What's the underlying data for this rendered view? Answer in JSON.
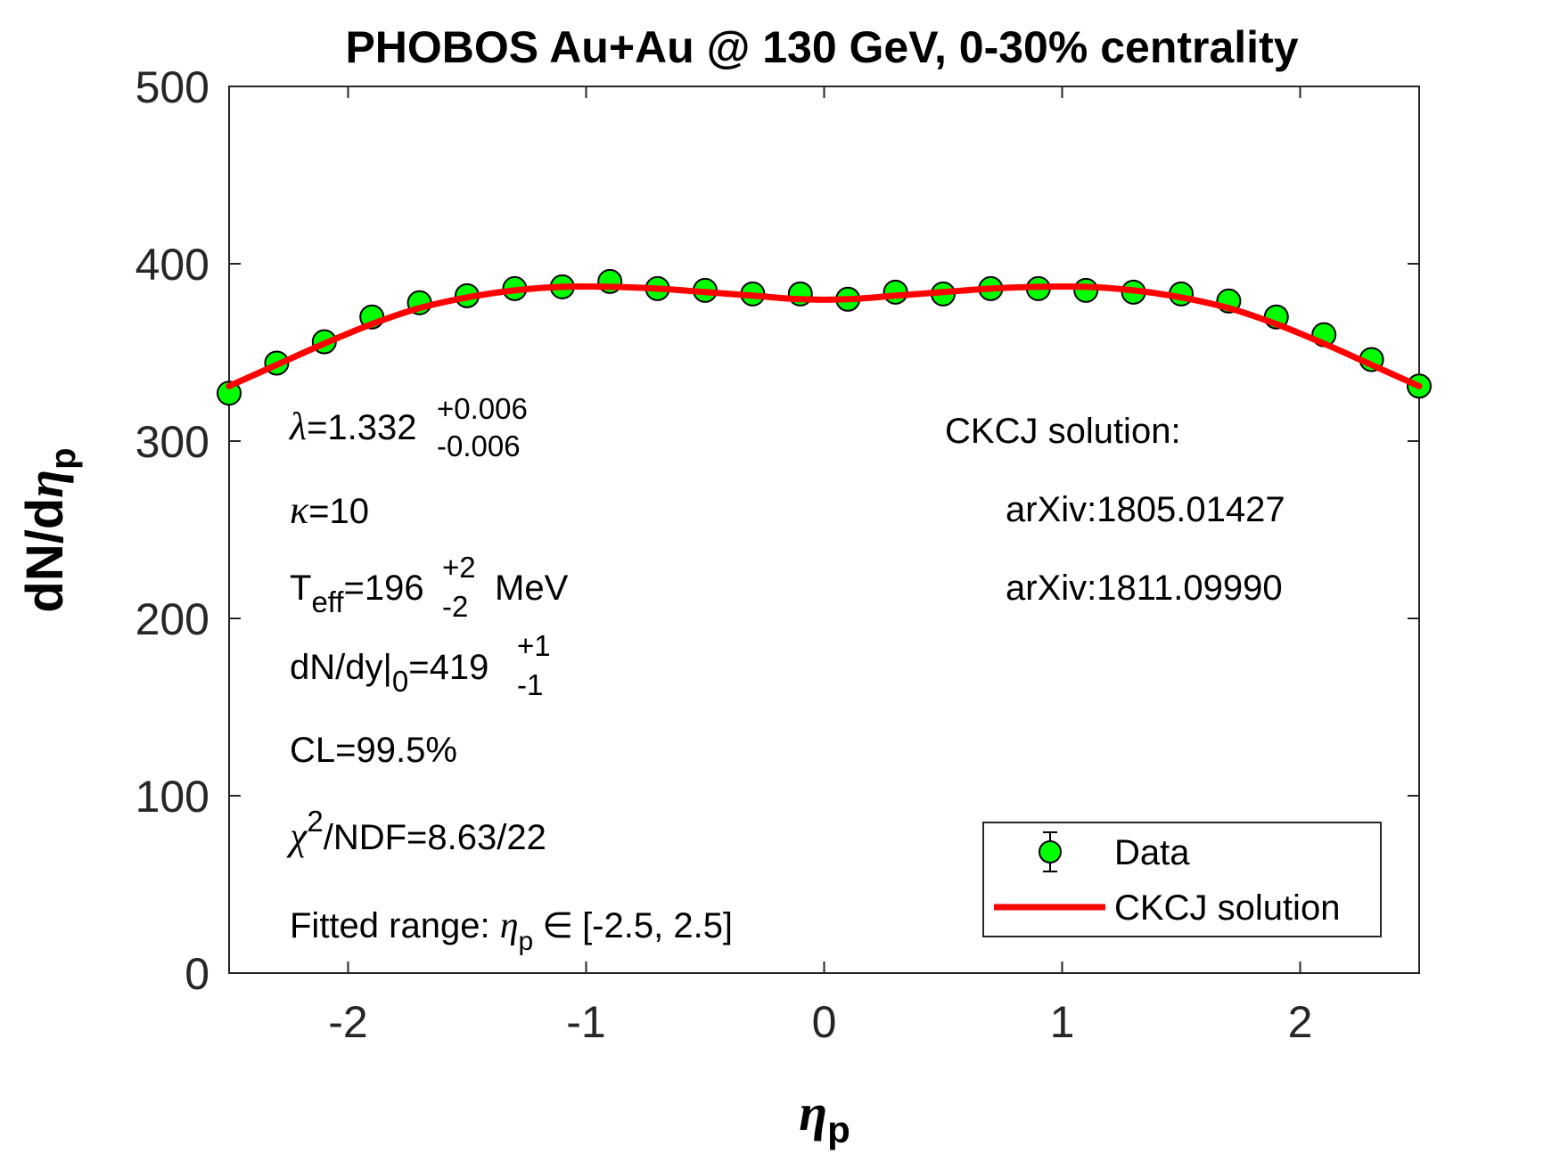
{
  "chart_data": {
    "type": "scatter",
    "title": "PHOBOS Au+Au @ 130 GeV, 0-30% centrality",
    "xlabel": {
      "symbol": "η",
      "subscript": "p"
    },
    "ylabel": {
      "text": "dN/d",
      "symbol": "η",
      "subscript": "p"
    },
    "xlim": [
      -2.5,
      2.5
    ],
    "ylim": [
      0,
      500
    ],
    "xticks": [
      -2,
      -1,
      0,
      1,
      2
    ],
    "xtick_labels": [
      "-2",
      "-1",
      "0",
      "1",
      "2"
    ],
    "yticks": [
      0,
      100,
      200,
      300,
      400,
      500
    ],
    "ytick_labels": [
      "0",
      "100",
      "200",
      "300",
      "400",
      "500"
    ],
    "series": [
      {
        "name": "Data",
        "kind": "errorbar-markers",
        "color": "#00ff00",
        "x": [
          -2.5,
          -2.3,
          -2.1,
          -1.9,
          -1.7,
          -1.5,
          -1.3,
          -1.1,
          -0.9,
          -0.7,
          -0.5,
          -0.3,
          -0.1,
          0.1,
          0.3,
          0.5,
          0.7,
          0.9,
          1.1,
          1.3,
          1.5,
          1.7,
          1.9,
          2.1,
          2.3,
          2.5
        ],
        "y": [
          327,
          344,
          356,
          370,
          378,
          382,
          386,
          387,
          390,
          386,
          385,
          383,
          383,
          380,
          384,
          383,
          386,
          386,
          385,
          384,
          383,
          379,
          370,
          360,
          346,
          331
        ],
        "err": [
          4,
          4,
          4,
          4,
          4,
          4,
          4,
          4,
          4,
          4,
          4,
          4,
          4,
          4,
          4,
          4,
          4,
          4,
          4,
          4,
          4,
          4,
          4,
          4,
          4,
          4
        ]
      },
      {
        "name": "CKCJ solution",
        "kind": "line",
        "color": "#ff0000",
        "x": [
          -2.5,
          -2.3,
          -2.1,
          -1.9,
          -1.7,
          -1.5,
          -1.3,
          -1.1,
          -0.9,
          -0.7,
          -0.5,
          -0.3,
          -0.1,
          0.1,
          0.3,
          0.5,
          0.7,
          0.9,
          1.1,
          1.3,
          1.5,
          1.7,
          1.9,
          2.1,
          2.3,
          2.5
        ],
        "y": [
          331,
          343,
          355,
          366,
          375,
          381,
          385,
          387,
          387,
          386,
          384,
          382,
          380,
          380,
          382,
          384,
          386,
          387,
          387,
          385,
          381,
          375,
          366,
          355,
          343,
          331
        ]
      }
    ],
    "legend": {
      "position": "bottom-right",
      "entries": [
        "Data",
        "CKCJ solution"
      ]
    },
    "annotations_left": {
      "lambda": {
        "symbol": "λ",
        "text": "=1.332",
        "sup": "+0.006",
        "sub": "-0.006"
      },
      "kappa": {
        "symbol": "κ",
        "text": "=10"
      },
      "teff": {
        "pre": "T",
        "presub": "eff",
        "text": "=196",
        "sup": "+2",
        "sub": "-2",
        "post": "MeV"
      },
      "dndy": {
        "pre": "dN/dy|",
        "presub": "0",
        "text": "=419",
        "sup": "+1",
        "sub": "-1"
      },
      "cl": "CL=99.5%",
      "chi2": {
        "symbol": "χ",
        "sup": "2",
        "text": "/NDF=8.63/22"
      },
      "range": {
        "pre": "Fitted range: ",
        "symbol": "η",
        "sub": "p",
        "mid": "∈",
        "post": "[-2.5, 2.5]"
      }
    },
    "annotations_right": {
      "line1": "CKCJ solution:",
      "line2": "arXiv:1805.01427",
      "line3": "arXiv:1811.09990"
    }
  }
}
